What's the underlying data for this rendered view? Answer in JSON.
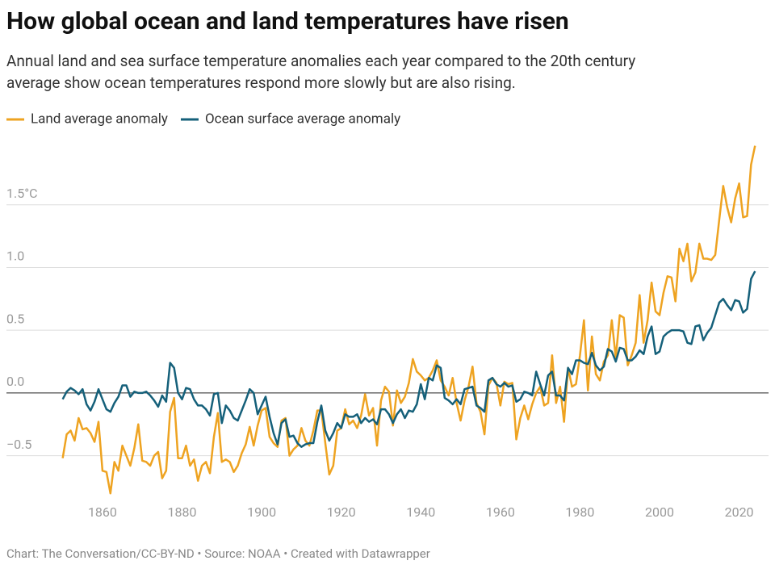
{
  "chart_data": {
    "type": "line",
    "title": "How global ocean and land temperatures have risen",
    "subtitle": [
      "Annual land and sea surface temperature anomalies each year compared to the 20th century",
      "average show ocean temperatures respond more slowly but are also rising."
    ],
    "footer": "Chart: The Conversation/CC-BY-ND • Source: NOAA • Created with Datawrapper",
    "x": [
      1850,
      1851,
      1852,
      1853,
      1854,
      1855,
      1856,
      1857,
      1858,
      1859,
      1860,
      1861,
      1862,
      1863,
      1864,
      1865,
      1866,
      1867,
      1868,
      1869,
      1870,
      1871,
      1872,
      1873,
      1874,
      1875,
      1876,
      1877,
      1878,
      1879,
      1880,
      1881,
      1882,
      1883,
      1884,
      1885,
      1886,
      1887,
      1888,
      1889,
      1890,
      1891,
      1892,
      1893,
      1894,
      1895,
      1896,
      1897,
      1898,
      1899,
      1900,
      1901,
      1902,
      1903,
      1904,
      1905,
      1906,
      1907,
      1908,
      1909,
      1910,
      1911,
      1912,
      1913,
      1914,
      1915,
      1916,
      1917,
      1918,
      1919,
      1920,
      1921,
      1922,
      1923,
      1924,
      1925,
      1926,
      1927,
      1928,
      1929,
      1930,
      1931,
      1932,
      1933,
      1934,
      1935,
      1936,
      1937,
      1938,
      1939,
      1940,
      1941,
      1942,
      1943,
      1944,
      1945,
      1946,
      1947,
      1948,
      1949,
      1950,
      1951,
      1952,
      1953,
      1954,
      1955,
      1956,
      1957,
      1958,
      1959,
      1960,
      1961,
      1962,
      1963,
      1964,
      1965,
      1966,
      1967,
      1968,
      1969,
      1970,
      1971,
      1972,
      1973,
      1974,
      1975,
      1976,
      1977,
      1978,
      1979,
      1980,
      1981,
      1982,
      1983,
      1984,
      1985,
      1986,
      1987,
      1988,
      1989,
      1990,
      1991,
      1992,
      1993,
      1994,
      1995,
      1996,
      1997,
      1998,
      1999,
      2000,
      2001,
      2002,
      2003,
      2004,
      2005,
      2006,
      2007,
      2008,
      2009,
      2010,
      2011,
      2012,
      2013,
      2014,
      2015,
      2016,
      2017,
      2018,
      2019,
      2020,
      2021,
      2022,
      2023,
      2024
    ],
    "series": [
      {
        "name": "Land average anomaly",
        "color": "#eea321",
        "values": [
          -0.52,
          -0.33,
          -0.3,
          -0.38,
          -0.2,
          -0.29,
          -0.28,
          -0.32,
          -0.39,
          -0.23,
          -0.62,
          -0.63,
          -0.8,
          -0.55,
          -0.62,
          -0.42,
          -0.5,
          -0.58,
          -0.44,
          -0.25,
          -0.54,
          -0.55,
          -0.58,
          -0.5,
          -0.47,
          -0.68,
          -0.62,
          -0.15,
          -0.04,
          -0.52,
          -0.52,
          -0.42,
          -0.58,
          -0.53,
          -0.7,
          -0.58,
          -0.55,
          -0.64,
          -0.35,
          -0.16,
          -0.55,
          -0.53,
          -0.55,
          -0.63,
          -0.58,
          -0.48,
          -0.41,
          -0.27,
          -0.42,
          -0.26,
          -0.14,
          -0.12,
          -0.35,
          -0.4,
          -0.43,
          -0.22,
          -0.2,
          -0.5,
          -0.45,
          -0.42,
          -0.28,
          -0.38,
          -0.42,
          -0.3,
          -0.14,
          -0.14,
          -0.4,
          -0.65,
          -0.58,
          -0.3,
          -0.28,
          -0.13,
          -0.25,
          -0.22,
          -0.28,
          -0.18,
          -0.01,
          -0.18,
          -0.12,
          -0.42,
          -0.06,
          0.05,
          0.01,
          -0.26,
          0.02,
          -0.08,
          -0.03,
          0.08,
          0.27,
          0.17,
          0.14,
          0.1,
          0.12,
          0.18,
          0.26,
          0.1,
          0.05,
          -0.02,
          0.12,
          -0.08,
          -0.22,
          -0.06,
          0.05,
          0.21,
          -0.08,
          -0.15,
          -0.33,
          0.06,
          0.12,
          0.08,
          -0.1,
          0.09,
          0.07,
          0.08,
          -0.37,
          -0.2,
          -0.1,
          -0.21,
          -0.09,
          0,
          0.05,
          -0.1,
          -0.08,
          0.3,
          -0.08,
          0.05,
          -0.23,
          0.2,
          0.05,
          0.07,
          0.3,
          0.58,
          0.02,
          0.45,
          0.15,
          0.1,
          0.25,
          0.3,
          0.58,
          0.28,
          0.62,
          0.6,
          0.22,
          0.3,
          0.4,
          0.78,
          0.4,
          0.58,
          0.88,
          0.65,
          0.62,
          0.8,
          0.93,
          0.92,
          0.73,
          1.15,
          1.05,
          1.19,
          0.89,
          0.96,
          1.19,
          1.07,
          1.07,
          1.06,
          1.1,
          1.38,
          1.65,
          1.48,
          1.36,
          1.55,
          1.67,
          1.4,
          1.41,
          1.82,
          1.97
        ]
      },
      {
        "name": "Ocean surface average anomaly",
        "color": "#15607a",
        "values": [
          -0.05,
          0.01,
          0.04,
          0.02,
          -0.01,
          0.03,
          -0.09,
          -0.14,
          -0.07,
          0.03,
          -0.05,
          -0.13,
          -0.15,
          -0.08,
          -0.03,
          0.06,
          0.06,
          -0.03,
          0.01,
          0,
          0,
          0.01,
          -0.02,
          -0.06,
          -0.11,
          -0.02,
          -0.07,
          0.24,
          0.2,
          0,
          -0.05,
          0.04,
          0.03,
          -0.05,
          -0.1,
          -0.1,
          -0.13,
          -0.18,
          -0.01,
          0,
          -0.24,
          -0.1,
          -0.14,
          -0.2,
          -0.22,
          -0.14,
          -0.06,
          0.03,
          0,
          -0.17,
          -0.1,
          -0.03,
          -0.19,
          -0.32,
          -0.41,
          -0.24,
          -0.21,
          -0.35,
          -0.34,
          -0.4,
          -0.43,
          -0.41,
          -0.4,
          -0.4,
          -0.23,
          -0.1,
          -0.3,
          -0.38,
          -0.32,
          -0.24,
          -0.28,
          -0.17,
          -0.19,
          -0.19,
          -0.17,
          -0.24,
          -0.2,
          -0.23,
          -0.21,
          -0.25,
          -0.13,
          -0.13,
          -0.17,
          -0.24,
          -0.17,
          -0.13,
          -0.2,
          -0.14,
          -0.15,
          -0.09,
          0.07,
          -0.05,
          0.12,
          0.1,
          0.22,
          0.2,
          -0.04,
          -0.06,
          -0.09,
          -0.05,
          -0.09,
          0.03,
          0.04,
          0.05,
          -0.1,
          -0.12,
          -0.15,
          0.1,
          0.12,
          0.07,
          0.05,
          0.08,
          0.05,
          0.06,
          -0.07,
          -0.05,
          0.01,
          0,
          -0.02,
          0.17,
          0.07,
          -0.02,
          0.14,
          0.17,
          -0.02,
          -0.02,
          -0.06,
          0.2,
          0.15,
          0.26,
          0.26,
          0.24,
          0.23,
          0.32,
          0.22,
          0.18,
          0.21,
          0.35,
          0.33,
          0.25,
          0.36,
          0.35,
          0.26,
          0.26,
          0.29,
          0.34,
          0.31,
          0.45,
          0.53,
          0.31,
          0.33,
          0.45,
          0.48,
          0.5,
          0.5,
          0.5,
          0.49,
          0.4,
          0.39,
          0.53,
          0.54,
          0.42,
          0.48,
          0.52,
          0.62,
          0.72,
          0.75,
          0.7,
          0.66,
          0.74,
          0.73,
          0.64,
          0.67,
          0.91,
          0.97
        ]
      }
    ],
    "xlim": [
      1845,
      2028
    ],
    "xticks": [
      1860,
      1880,
      1900,
      1920,
      1940,
      1960,
      1980,
      2000,
      2020
    ],
    "ylim": [
      -0.85,
      2.0
    ],
    "yticks": [
      {
        "value": -0.5,
        "label": "−0.5"
      },
      {
        "value": 0,
        "label": "0.0"
      },
      {
        "value": 0.5,
        "label": "0.5"
      },
      {
        "value": 1,
        "label": "1.0"
      },
      {
        "value": 1.5,
        "label": "1.5°C"
      }
    ],
    "grid": true,
    "legend": "top-left"
  }
}
